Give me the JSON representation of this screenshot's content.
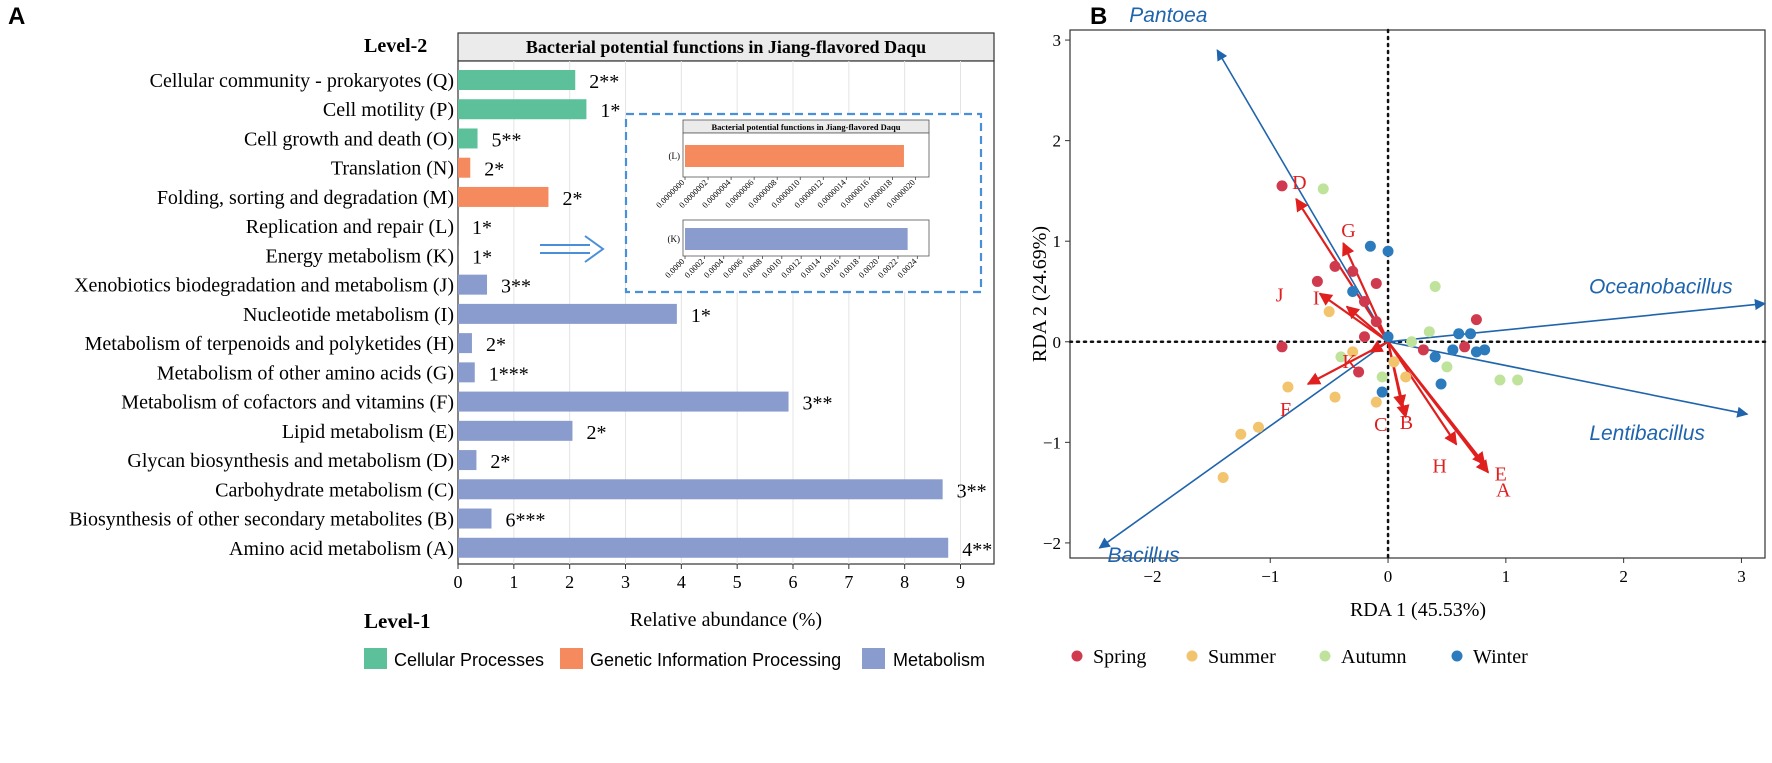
{
  "panel_labels": {
    "a": "A",
    "b": "B"
  },
  "chart_data": [
    {
      "type": "bar",
      "orientation": "horizontal",
      "title": "Bacterial potential functions in Jiang-flavored Daqu",
      "level2_label": "Level-2",
      "level1_label": "Level-1",
      "xlabel": "Relative abundance (%)",
      "xlim": [
        0,
        9.6
      ],
      "xticks": [
        "0",
        "1",
        "2",
        "3",
        "4",
        "5",
        "6",
        "7",
        "8",
        "9"
      ],
      "categories": [
        "Cellular community - prokaryotes (Q)",
        "Cell motility (P)",
        "Cell growth and death (O)",
        "Translation (N)",
        "Folding, sorting and degradation (M)",
        "Replication and repair (L)",
        "Energy metabolism (K)",
        "Xenobiotics biodegradation and metabolism (J)",
        "Nucleotide metabolism (I)",
        "Metabolism of terpenoids and polyketides (H)",
        "Metabolism of other amino acids (G)",
        "Metabolism of cofactors and vitamins (F)",
        "Lipid metabolism (E)",
        "Glycan biosynthesis and metabolism (D)",
        "Carbohydrate metabolism (C)",
        "Biosynthesis of other secondary metabolites (B)",
        "Amino acid metabolism (A)"
      ],
      "values": [
        2.1,
        2.3,
        0.35,
        0.22,
        1.62,
        1.9e-06,
        0.0023,
        0.52,
        3.92,
        0.25,
        0.3,
        5.92,
        2.05,
        0.33,
        8.68,
        0.6,
        8.78
      ],
      "annotations": [
        "2**",
        "1*",
        "5**",
        "2*",
        "2*",
        "1*",
        "1*",
        "3**",
        "1*",
        "2*",
        "1***",
        "3**",
        "2*",
        "2*",
        "3**",
        "6***",
        "4**"
      ],
      "groups": [
        "Cellular Processes",
        "Cellular Processes",
        "Cellular Processes",
        "Genetic Information Processing",
        "Genetic Information Processing",
        "Genetic Information Processing",
        "Metabolism",
        "Metabolism",
        "Metabolism",
        "Metabolism",
        "Metabolism",
        "Metabolism",
        "Metabolism",
        "Metabolism",
        "Metabolism",
        "Metabolism",
        "Metabolism"
      ],
      "legend": [
        {
          "name": "Cellular Processes",
          "color": "#5cc19b"
        },
        {
          "name": "Genetic Information Processing",
          "color": "#f58a5f"
        },
        {
          "name": "Metabolism",
          "color": "#8a9ccd"
        }
      ],
      "inset": {
        "title": "Bacterial potential functions in Jiang-flavored Daqu",
        "L": {
          "label": "(L)",
          "value": 1.9e-06,
          "xlim": [
            0,
            2.1e-06
          ],
          "ticks": [
            "0.0000000",
            "0.0000002",
            "0.0000004",
            "0.0000006",
            "0.0000008",
            "0.0000010",
            "0.0000012",
            "0.0000014",
            "0.0000016",
            "0.0000018",
            "0.0000020"
          ]
        },
        "K": {
          "label": "(K)",
          "value": 0.0023,
          "xlim": [
            0,
            0.0025
          ],
          "ticks": [
            "0.0000",
            "0.0002",
            "0.0004",
            "0.0006",
            "0.0008",
            "0.0010",
            "0.0012",
            "0.0014",
            "0.0016",
            "0.0018",
            "0.0020",
            "0.0022",
            "0.0024"
          ]
        }
      }
    },
    {
      "type": "scatter",
      "subtype": "RDA biplot",
      "xlabel": "RDA 1 (45.53%)",
      "ylabel": "RDA 2 (24.69%)",
      "xlim": [
        -2.7,
        3.2
      ],
      "ylim": [
        -2.15,
        3.1
      ],
      "xticks": [
        -2,
        -1,
        0,
        1,
        2,
        3
      ],
      "yticks": [
        -2,
        -1,
        0,
        1,
        2,
        3
      ],
      "tick_labels_x": [
        "−2",
        "−1",
        "0",
        "1",
        "2",
        "3"
      ],
      "tick_labels_y": [
        "−2",
        "−1",
        "0",
        "1",
        "2",
        "3"
      ],
      "species": [
        {
          "name": "Pantoea",
          "x": -1.45,
          "y": 2.9
        },
        {
          "name": "Oceanobacillus",
          "x": 3.2,
          "y": 0.38
        },
        {
          "name": "Lentibacillus",
          "x": 3.05,
          "y": -0.72
        },
        {
          "name": "Bacillus",
          "x": -2.45,
          "y": -2.05
        }
      ],
      "functions": [
        {
          "name": "A",
          "x": 0.85,
          "y": -1.3
        },
        {
          "name": "B",
          "x": 0.15,
          "y": -0.75
        },
        {
          "name": "C",
          "x": 0.12,
          "y": -0.65
        },
        {
          "name": "D",
          "x": -0.78,
          "y": 1.42
        },
        {
          "name": "E",
          "x": 0.82,
          "y": -1.22
        },
        {
          "name": "F",
          "x": -0.68,
          "y": -0.42
        },
        {
          "name": "G",
          "x": -0.38,
          "y": 0.98
        },
        {
          "name": "H",
          "x": 0.58,
          "y": -1.02
        },
        {
          "name": "I",
          "x": -0.35,
          "y": 0.35
        },
        {
          "name": "J",
          "x": -0.58,
          "y": 0.48
        },
        {
          "name": "K",
          "x": -0.15,
          "y": -0.1
        }
      ],
      "samples": [
        {
          "season": "Spring",
          "x": -0.9,
          "y": 1.55
        },
        {
          "season": "Spring",
          "x": -0.45,
          "y": 0.75
        },
        {
          "season": "Spring",
          "x": -0.6,
          "y": 0.6
        },
        {
          "season": "Spring",
          "x": -0.1,
          "y": 0.58
        },
        {
          "season": "Spring",
          "x": -0.2,
          "y": 0.4
        },
        {
          "season": "Spring",
          "x": -0.9,
          "y": -0.05
        },
        {
          "season": "Spring",
          "x": -0.1,
          "y": 0.2
        },
        {
          "season": "Spring",
          "x": -0.2,
          "y": 0.05
        },
        {
          "season": "Spring",
          "x": -0.3,
          "y": 0.7
        },
        {
          "season": "Spring",
          "x": 0.75,
          "y": 0.22
        },
        {
          "season": "Spring",
          "x": 0.65,
          "y": -0.05
        },
        {
          "season": "Spring",
          "x": 0.3,
          "y": -0.08
        },
        {
          "season": "Spring",
          "x": -0.25,
          "y": -0.3
        },
        {
          "season": "Summer",
          "x": -1.4,
          "y": -1.35
        },
        {
          "season": "Summer",
          "x": -1.1,
          "y": -0.85
        },
        {
          "season": "Summer",
          "x": -0.85,
          "y": -0.45
        },
        {
          "season": "Summer",
          "x": -0.45,
          "y": -0.55
        },
        {
          "season": "Summer",
          "x": -0.3,
          "y": -0.1
        },
        {
          "season": "Summer",
          "x": 0.05,
          "y": -0.2
        },
        {
          "season": "Summer",
          "x": 0.15,
          "y": -0.35
        },
        {
          "season": "Summer",
          "x": -0.1,
          "y": -0.6
        },
        {
          "season": "Summer",
          "x": -0.5,
          "y": 0.3
        },
        {
          "season": "Summer",
          "x": -1.25,
          "y": -0.92
        },
        {
          "season": "Autumn",
          "x": -0.55,
          "y": 1.52
        },
        {
          "season": "Autumn",
          "x": 0.4,
          "y": 0.55
        },
        {
          "season": "Autumn",
          "x": 0.35,
          "y": 0.1
        },
        {
          "season": "Autumn",
          "x": 0.5,
          "y": -0.25
        },
        {
          "season": "Autumn",
          "x": 0.95,
          "y": -0.38
        },
        {
          "season": "Autumn",
          "x": 1.1,
          "y": -0.38
        },
        {
          "season": "Autumn",
          "x": -0.05,
          "y": -0.35
        },
        {
          "season": "Autumn",
          "x": 0.2,
          "y": 0.0
        },
        {
          "season": "Autumn",
          "x": -0.4,
          "y": -0.15
        },
        {
          "season": "Winter",
          "x": -0.15,
          "y": 0.95
        },
        {
          "season": "Winter",
          "x": 0.0,
          "y": 0.9
        },
        {
          "season": "Winter",
          "x": -0.3,
          "y": 0.5
        },
        {
          "season": "Winter",
          "x": 0.6,
          "y": 0.08
        },
        {
          "season": "Winter",
          "x": 0.7,
          "y": 0.08
        },
        {
          "season": "Winter",
          "x": 0.55,
          "y": -0.08
        },
        {
          "season": "Winter",
          "x": 0.75,
          "y": -0.1
        },
        {
          "season": "Winter",
          "x": 0.82,
          "y": -0.08
        },
        {
          "season": "Winter",
          "x": 0.4,
          "y": -0.15
        },
        {
          "season": "Winter",
          "x": 0.0,
          "y": 0.05
        },
        {
          "season": "Winter",
          "x": -0.05,
          "y": -0.5
        },
        {
          "season": "Winter",
          "x": 0.45,
          "y": -0.42
        }
      ],
      "legend": [
        {
          "name": "Spring",
          "color": "#d03a4e"
        },
        {
          "name": "Summer",
          "color": "#f2c46d"
        },
        {
          "name": "Autumn",
          "color": "#bfe39b"
        },
        {
          "name": "Winter",
          "color": "#2b7bbd"
        }
      ],
      "species_color": "#1f64ad",
      "function_color": "#e01f1f"
    }
  ]
}
